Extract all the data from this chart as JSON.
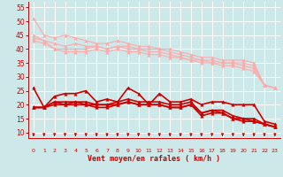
{
  "bg_color": "#cce8e8",
  "grid_color": "#ffffff",
  "xlabel": "Vent moyen/en rafales ( km/h )",
  "x_ticks": [
    0,
    1,
    2,
    3,
    4,
    5,
    6,
    7,
    8,
    9,
    10,
    11,
    12,
    13,
    14,
    15,
    16,
    17,
    18,
    19,
    20,
    21,
    22,
    23
  ],
  "yticks": [
    10,
    15,
    20,
    25,
    30,
    35,
    40,
    45,
    50,
    55
  ],
  "ylim": [
    8,
    57
  ],
  "xlim": [
    -0.5,
    23.5
  ],
  "series": [
    {
      "color": "#ffaaaa",
      "lw": 0.8,
      "marker": "^",
      "ms": 2.5,
      "data_x": [
        0,
        1,
        2,
        3,
        4,
        5,
        6,
        7,
        8,
        9,
        10,
        11,
        12,
        13,
        14,
        15,
        16,
        17,
        18,
        19,
        20,
        21,
        22,
        23
      ],
      "data_y": [
        51,
        45,
        44,
        45,
        44,
        43,
        42,
        42,
        43,
        42,
        41,
        41,
        40,
        40,
        39,
        38,
        37,
        37,
        36,
        36,
        36,
        35,
        27,
        26
      ]
    },
    {
      "color": "#ffaaaa",
      "lw": 0.8,
      "marker": "^",
      "ms": 2.5,
      "data_x": [
        0,
        1,
        2,
        3,
        4,
        5,
        6,
        7,
        8,
        9,
        10,
        11,
        12,
        13,
        14,
        15,
        16,
        17,
        18,
        19,
        20,
        21,
        22,
        23
      ],
      "data_y": [
        45,
        43,
        42,
        41,
        42,
        41,
        41,
        40,
        41,
        41,
        40,
        40,
        40,
        39,
        38,
        37,
        36,
        36,
        35,
        35,
        35,
        34,
        27,
        26
      ]
    },
    {
      "color": "#ffaaaa",
      "lw": 0.8,
      "marker": "^",
      "ms": 2.5,
      "data_x": [
        0,
        1,
        2,
        3,
        4,
        5,
        6,
        7,
        8,
        9,
        10,
        11,
        12,
        13,
        14,
        15,
        16,
        17,
        18,
        19,
        20,
        21,
        22,
        23
      ],
      "data_y": [
        44,
        43,
        40,
        40,
        40,
        40,
        41,
        40,
        41,
        40,
        40,
        39,
        39,
        38,
        37,
        36,
        36,
        35,
        35,
        35,
        34,
        33,
        27,
        26
      ]
    },
    {
      "color": "#ffaaaa",
      "lw": 0.8,
      "marker": "^",
      "ms": 2.5,
      "data_x": [
        0,
        1,
        2,
        3,
        4,
        5,
        6,
        7,
        8,
        9,
        10,
        11,
        12,
        13,
        14,
        15,
        16,
        17,
        18,
        19,
        20,
        21,
        22,
        23
      ],
      "data_y": [
        43,
        42,
        40,
        39,
        39,
        39,
        40,
        39,
        40,
        39,
        39,
        38,
        38,
        37,
        37,
        36,
        35,
        35,
        34,
        34,
        33,
        32,
        27,
        26
      ]
    },
    {
      "color": "#cc0000",
      "lw": 1.2,
      "marker": "^",
      "ms": 2.5,
      "data_x": [
        0,
        1,
        2,
        3,
        4,
        5,
        6,
        7,
        8,
        9,
        10,
        11,
        12,
        13,
        14,
        15,
        16,
        17,
        18,
        19,
        20,
        21,
        22,
        23
      ],
      "data_y": [
        26,
        19,
        23,
        24,
        24,
        25,
        21,
        22,
        21,
        26,
        24,
        20,
        24,
        21,
        21,
        22,
        20,
        21,
        21,
        20,
        20,
        20,
        14,
        13
      ]
    },
    {
      "color": "#cc0000",
      "lw": 1.2,
      "marker": "^",
      "ms": 2.5,
      "data_x": [
        0,
        1,
        2,
        3,
        4,
        5,
        6,
        7,
        8,
        9,
        10,
        11,
        12,
        13,
        14,
        15,
        16,
        17,
        18,
        19,
        20,
        21,
        22,
        23
      ],
      "data_y": [
        19,
        19,
        21,
        21,
        21,
        20,
        20,
        20,
        20,
        21,
        20,
        20,
        20,
        19,
        19,
        20,
        17,
        18,
        17,
        15,
        15,
        14,
        13,
        12
      ]
    },
    {
      "color": "#cc0000",
      "lw": 1.2,
      "marker": "^",
      "ms": 2.5,
      "data_x": [
        0,
        1,
        2,
        3,
        4,
        5,
        6,
        7,
        8,
        9,
        10,
        11,
        12,
        13,
        14,
        15,
        16,
        17,
        18,
        19,
        20,
        21,
        22,
        23
      ],
      "data_y": [
        19,
        19,
        21,
        20,
        21,
        21,
        20,
        20,
        21,
        22,
        21,
        21,
        21,
        20,
        20,
        21,
        17,
        18,
        18,
        16,
        15,
        15,
        13,
        12
      ]
    },
    {
      "color": "#cc0000",
      "lw": 1.2,
      "marker": "^",
      "ms": 2.5,
      "data_x": [
        0,
        1,
        2,
        3,
        4,
        5,
        6,
        7,
        8,
        9,
        10,
        11,
        12,
        13,
        14,
        15,
        16,
        17,
        18,
        19,
        20,
        21,
        22,
        23
      ],
      "data_y": [
        19,
        19,
        20,
        20,
        20,
        20,
        19,
        19,
        20,
        21,
        20,
        20,
        20,
        19,
        19,
        20,
        16,
        17,
        17,
        15,
        14,
        14,
        13,
        12
      ]
    }
  ],
  "tick_color": "#cc0000",
  "label_color": "#cc0000",
  "spine_color": "#cc0000",
  "arrow_color": "#cc0000"
}
